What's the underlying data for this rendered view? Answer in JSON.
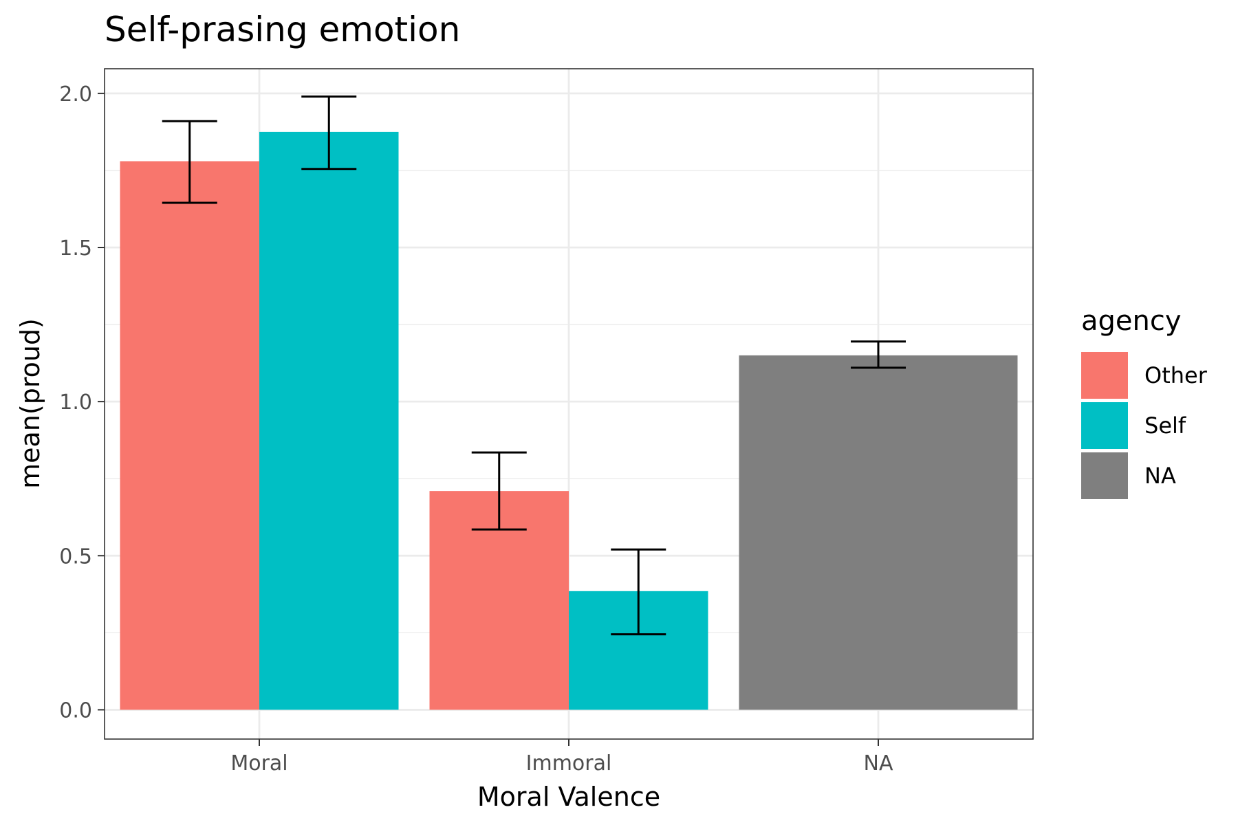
{
  "chart_data": {
    "type": "bar",
    "title": "Self-prasing emotion",
    "xlabel": "Moral Valence",
    "ylabel": "mean(proud)",
    "categories": [
      "Moral",
      "Immoral",
      "NA"
    ],
    "ylim": [
      -0.095,
      2.08
    ],
    "yticks": [
      "0.0",
      "0.5",
      "1.0",
      "1.5",
      "2.0"
    ],
    "grid": true,
    "legend": {
      "title": "agency",
      "position": "right",
      "entries": [
        {
          "label": "Other",
          "color": "#F8766D"
        },
        {
          "label": "Self",
          "color": "#00BFC4"
        },
        {
          "label": "NA",
          "color": "#7F7F7F"
        }
      ]
    },
    "bars": [
      {
        "category": "Moral",
        "group": "Other",
        "value": 1.78,
        "err_low": 1.645,
        "err_high": 1.91
      },
      {
        "category": "Moral",
        "group": "Self",
        "value": 1.875,
        "err_low": 1.755,
        "err_high": 1.99
      },
      {
        "category": "Immoral",
        "group": "Other",
        "value": 0.71,
        "err_low": 0.585,
        "err_high": 0.835
      },
      {
        "category": "Immoral",
        "group": "Self",
        "value": 0.385,
        "err_low": 0.245,
        "err_high": 0.52
      },
      {
        "category": "NA",
        "group": "NA",
        "value": 1.15,
        "err_low": 1.11,
        "err_high": 1.195
      }
    ]
  }
}
